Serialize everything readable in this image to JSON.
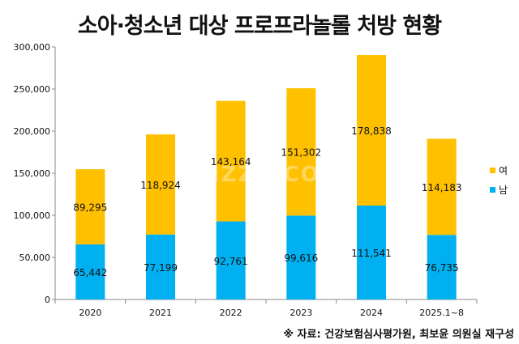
{
  "title": "소아·청소년 대상 프로프라놀롤 처방 현황",
  "source": "※ 자료: 건강보험심사평가원, 최보윤 의원실 재구성",
  "watermark": "DIZZO.COM",
  "chart_data": {
    "type": "bar",
    "stacked": true,
    "title": "소아·청소년 대상 프로프라놀롤 처방 현황",
    "xlabel": "",
    "ylabel": "",
    "categories": [
      "2020",
      "2021",
      "2022",
      "2023",
      "2024",
      "2025.1~8"
    ],
    "series": [
      {
        "name": "남",
        "color": "#00b0f0",
        "values": [
          65442,
          77199,
          92761,
          99616,
          111541,
          76735
        ],
        "labels": [
          "65,442",
          "77,199",
          "92,761",
          "99,616",
          "111,541",
          "76,735"
        ]
      },
      {
        "name": "여",
        "color": "#ffc000",
        "values": [
          89295,
          118924,
          143164,
          151302,
          178838,
          114183
        ],
        "labels": [
          "89,295",
          "118,924",
          "143,164",
          "151,302",
          "178,838",
          "114,183"
        ]
      }
    ],
    "ylim": [
      0,
      300000
    ],
    "yticks": [
      "0",
      "50,000",
      "100,000",
      "150,000",
      "200,000",
      "250,000",
      "300,000"
    ],
    "grid": false,
    "legend": "right"
  }
}
